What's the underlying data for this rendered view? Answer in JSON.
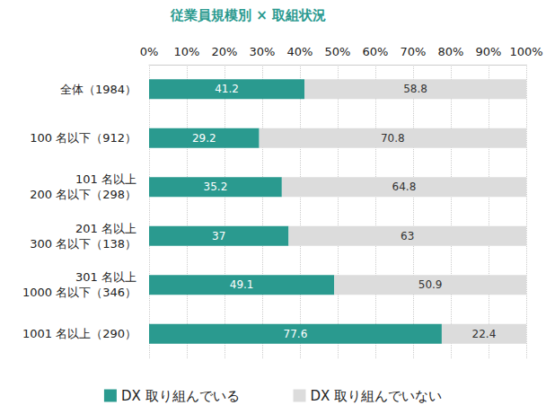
{
  "chart_data": {
    "type": "bar",
    "title": "従業員規模別 × 取組状況",
    "orientation": "horizontal",
    "stacked": true,
    "data_labels": true,
    "grid": true,
    "legend": "bottom",
    "categories": [
      "全体（1984）",
      "100 名以下（912）",
      "101 名以上\n200 名以下（298）",
      "201 名以上\n300 名以下（138）",
      "301 名以上\n1000 名以下（346）",
      "1001 名以上（290）"
    ],
    "series": [
      {
        "name": "DX 取り組んでいる",
        "color": "#2a9a8f",
        "values": [
          41.2,
          29.2,
          35.2,
          37,
          49.1,
          77.6
        ]
      },
      {
        "name": "DX 取り組んでいない",
        "color": "#dcdcdc",
        "values": [
          58.8,
          70.8,
          64.8,
          63,
          50.9,
          22.4
        ]
      }
    ],
    "xlim": [
      0,
      100
    ],
    "xticks": [
      {
        "value": 0,
        "label": "0%"
      },
      {
        "value": 10,
        "label": "10%"
      },
      {
        "value": 20,
        "label": "20%"
      },
      {
        "value": 30,
        "label": "30%"
      },
      {
        "value": 40,
        "label": "40%"
      },
      {
        "value": 50,
        "label": "50%"
      },
      {
        "value": 60,
        "label": "60%"
      },
      {
        "value": 70,
        "label": "70%"
      },
      {
        "value": 80,
        "label": "80%"
      },
      {
        "value": 90,
        "label": "90%"
      },
      {
        "value": 100,
        "label": "100%"
      }
    ]
  }
}
